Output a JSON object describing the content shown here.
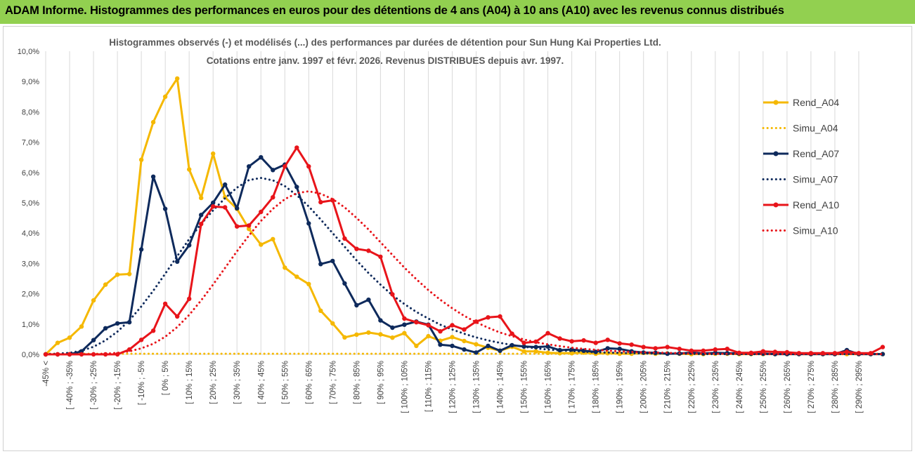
{
  "header": {
    "title": "ADAM Informe. Histogrammes des performances en euros pour des détentions de 4 ans (A04) à 10 ans (A10) avec les revenus connus distribués",
    "background": "#92d050"
  },
  "chart_data": {
    "type": "line",
    "title": "Histogrammes observés (-) et modélisés (...) des performances par durées de détention pour Sun Hung Kai Properties Ltd.",
    "subtitle": "Cotations entre janv. 1997 et févr. 2026. Revenus DISTRIBUES depuis avr. 1997.",
    "xlabel": "",
    "ylabel": "",
    "ylim": [
      0,
      10
    ],
    "y_unit": "%",
    "yticks": [
      "0,0%",
      "1,0%",
      "2,0%",
      "3,0%",
      "4,0%",
      "5,0%",
      "6,0%",
      "7,0%",
      "8,0%",
      "9,0%",
      "10,0%"
    ],
    "grid": "vertical",
    "legend_position": "right",
    "tick_labels": [
      "-45% <",
      "[ -40% ; -35%",
      "[ -30% ; -25%",
      "[ -20% ; -15%",
      "[ -10% ; -5%",
      "[ 0% ; 5%",
      "[ 10% ; 15%",
      "[ 20% ; 25%",
      "[ 30% ; 35%",
      "[ 40% ; 45%",
      "[ 50% ; 55%",
      "[ 60% ; 65%",
      "[ 70% ; 75%",
      "[ 80% ; 85%",
      "[ 90% ; 95%",
      "[ 100% ; 105%",
      "[ 110% ; 115%",
      "[ 120% ; 125%",
      "[ 130% ; 135%",
      "[ 140% ; 145%",
      "[ 150% ; 155%",
      "[ 160% ; 165%",
      "[ 170% ; 175%",
      "[ 180% ; 185%",
      "[ 190% ; 195%",
      "[ 200% ; 205%",
      "[ 210% ; 215%",
      "[ 220% ; 225%",
      "[ 230% ; 235%",
      "[ 240% ; 245%",
      "[ 250% ; 255%",
      "[ 260% ; 265%",
      "[ 270% ; 275%",
      "[ 280% ; 285%",
      "[ 290% ; 295%"
    ],
    "series": [
      {
        "name": "Rend_A04",
        "style": "solid-markers",
        "color": "#f5b800",
        "values": [
          0.0,
          0.38,
          0.55,
          0.92,
          1.78,
          2.3,
          2.63,
          2.65,
          6.42,
          7.66,
          8.5,
          9.1,
          6.1,
          5.16,
          6.62,
          5.18,
          4.8,
          4.14,
          3.62,
          3.8,
          2.86,
          2.56,
          2.32,
          1.44,
          1.02,
          0.56,
          0.65,
          0.72,
          0.66,
          0.55,
          0.7,
          0.28,
          0.6,
          0.45,
          0.57,
          0.44,
          0.33,
          0.22,
          0.12,
          0.25,
          0.1,
          0.1,
          0.05,
          0.04,
          0.04,
          0.06,
          0.02,
          0.04,
          0.02,
          0.02,
          0.05,
          0.02,
          0.03,
          0.02,
          0.01,
          0.01,
          0.02,
          0.02,
          0.01,
          0.01,
          0.01,
          0.01,
          0.01,
          0.01,
          0.01,
          0.01,
          0.01,
          0.01,
          0.01,
          0.01,
          0.01
        ]
      },
      {
        "name": "Simu_A04",
        "style": "dotted",
        "color": "#f5b800",
        "values": [
          0.02,
          0.02,
          0.02,
          0.02,
          0.02,
          0.02,
          0.02,
          0.02,
          0.02,
          0.02,
          0.02,
          0.02,
          0.02,
          0.02,
          0.02,
          0.02,
          0.02,
          0.02,
          0.02,
          0.02,
          0.02,
          0.02,
          0.02,
          0.02,
          0.02,
          0.02,
          0.02,
          0.02,
          0.02,
          0.02,
          0.02,
          0.02,
          0.02,
          0.02,
          0.02,
          0.02,
          0.02,
          0.02,
          0.02,
          0.02,
          0.02,
          0.02,
          0.02,
          0.02,
          0.02,
          0.02,
          0.02,
          0.02,
          0.02,
          0.02,
          0.02,
          0.02,
          0.02,
          0.02,
          0.02,
          0.02,
          0.02,
          0.02,
          0.02,
          0.02,
          0.02,
          0.02,
          0.02,
          0.02,
          0.02,
          0.02,
          0.02,
          0.02,
          0.02,
          0.02,
          0.02
        ]
      },
      {
        "name": "Rend_A07",
        "style": "solid-markers",
        "color": "#0e2a5c",
        "values": [
          0.0,
          0.0,
          0.0,
          0.1,
          0.47,
          0.86,
          1.02,
          1.06,
          3.46,
          5.86,
          4.8,
          3.06,
          3.6,
          4.6,
          5.0,
          5.6,
          4.82,
          6.2,
          6.5,
          6.08,
          6.26,
          5.52,
          4.32,
          2.98,
          3.08,
          2.34,
          1.62,
          1.8,
          1.12,
          0.88,
          0.98,
          1.08,
          0.98,
          0.32,
          0.28,
          0.16,
          0.06,
          0.28,
          0.12,
          0.3,
          0.26,
          0.24,
          0.26,
          0.14,
          0.16,
          0.12,
          0.08,
          0.2,
          0.18,
          0.1,
          0.06,
          0.05,
          0.02,
          0.03,
          0.06,
          0.03,
          0.05,
          0.04,
          0.03,
          0.02,
          0.02,
          0.01,
          0.01,
          0.01,
          0.01,
          0.01,
          0.01,
          0.14,
          0.01,
          0.01,
          0.01
        ]
      },
      {
        "name": "Simu_A07",
        "style": "dotted",
        "color": "#0e2a5c",
        "values": [
          0.01,
          0.02,
          0.05,
          0.12,
          0.25,
          0.46,
          0.75,
          1.12,
          1.58,
          2.1,
          2.66,
          3.24,
          3.8,
          4.3,
          4.75,
          5.15,
          5.5,
          5.75,
          5.82,
          5.74,
          5.55,
          5.25,
          4.88,
          4.45,
          4.0,
          3.55,
          3.1,
          2.68,
          2.3,
          1.95,
          1.66,
          1.4,
          1.18,
          0.98,
          0.82,
          0.68,
          0.56,
          0.46,
          0.38,
          0.31,
          0.25,
          0.2,
          0.16,
          0.13,
          0.11,
          0.09,
          0.07,
          0.06,
          0.05,
          0.04,
          0.03,
          0.03,
          0.02,
          0.02,
          0.02,
          0.01,
          0.01,
          0.01,
          0.01,
          0.01,
          0.01,
          0.01,
          0.01,
          0.01,
          0.01,
          0.01,
          0.01,
          0.01,
          0.01,
          0.01,
          0.01
        ]
      },
      {
        "name": "Rend_A10",
        "style": "solid-markers",
        "color": "#e8141a",
        "values": [
          0.0,
          0.0,
          0.0,
          0.0,
          0.0,
          0.0,
          0.0,
          0.16,
          0.48,
          0.78,
          1.67,
          1.25,
          1.83,
          4.3,
          4.88,
          4.85,
          4.22,
          4.25,
          4.7,
          5.18,
          6.2,
          6.82,
          6.2,
          5.02,
          5.08,
          3.82,
          3.48,
          3.42,
          3.22,
          1.98,
          1.18,
          1.06,
          0.96,
          0.76,
          0.96,
          0.82,
          1.08,
          1.22,
          1.25,
          0.68,
          0.38,
          0.42,
          0.7,
          0.52,
          0.43,
          0.46,
          0.38,
          0.48,
          0.36,
          0.32,
          0.24,
          0.2,
          0.24,
          0.18,
          0.12,
          0.12,
          0.16,
          0.18,
          0.05,
          0.05,
          0.1,
          0.08,
          0.07,
          0.04,
          0.04,
          0.04,
          0.04,
          0.08,
          0.04,
          0.04,
          0.24
        ]
      },
      {
        "name": "Simu_A10",
        "style": "dotted",
        "color": "#e8141a",
        "values": [
          0.0,
          0.0,
          0.0,
          0.0,
          0.01,
          0.02,
          0.05,
          0.1,
          0.2,
          0.35,
          0.58,
          0.9,
          1.3,
          1.78,
          2.3,
          2.85,
          3.4,
          3.92,
          4.4,
          4.8,
          5.12,
          5.32,
          5.38,
          5.3,
          5.12,
          4.85,
          4.5,
          4.12,
          3.7,
          3.28,
          2.86,
          2.48,
          2.12,
          1.8,
          1.52,
          1.27,
          1.06,
          0.88,
          0.72,
          0.6,
          0.49,
          0.4,
          0.33,
          0.27,
          0.22,
          0.18,
          0.15,
          0.12,
          0.1,
          0.08,
          0.07,
          0.06,
          0.05,
          0.04,
          0.03,
          0.03,
          0.02,
          0.02,
          0.02,
          0.01,
          0.01,
          0.01,
          0.01,
          0.01,
          0.01,
          0.01,
          0.01,
          0.01,
          0.01,
          0.01,
          0.01
        ]
      }
    ]
  }
}
